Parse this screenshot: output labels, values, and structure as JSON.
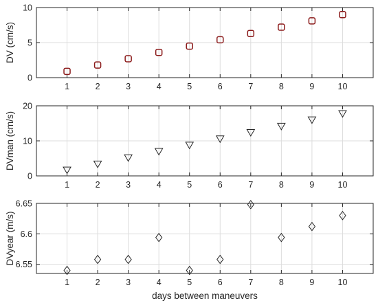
{
  "chart_data": [
    {
      "type": "scatter",
      "ylabel": "DV (cm/s)",
      "xlabel": "",
      "xlim": [
        0,
        11
      ],
      "ylim": [
        0,
        10
      ],
      "xticks": [
        1,
        2,
        3,
        4,
        5,
        6,
        7,
        8,
        9,
        10
      ],
      "yticks": [
        0,
        5,
        10
      ],
      "grid": true,
      "marker": "square",
      "marker_stroke": "#8b1a1a",
      "x": [
        1,
        2,
        3,
        4,
        5,
        6,
        7,
        8,
        9,
        10
      ],
      "y": [
        0.9,
        1.8,
        2.7,
        3.6,
        4.5,
        5.4,
        6.3,
        7.2,
        8.1,
        9.0
      ]
    },
    {
      "type": "scatter",
      "ylabel": "DVman (cm/s)",
      "xlabel": "",
      "xlim": [
        0,
        11
      ],
      "ylim": [
        0,
        20
      ],
      "xticks": [
        1,
        2,
        3,
        4,
        5,
        6,
        7,
        8,
        9,
        10
      ],
      "yticks": [
        0,
        10,
        20
      ],
      "grid": true,
      "marker": "triangle-down",
      "marker_stroke": "#262626",
      "x": [
        1,
        2,
        3,
        4,
        5,
        6,
        7,
        8,
        9,
        10
      ],
      "y": [
        1.6,
        3.3,
        5.1,
        6.9,
        8.7,
        10.5,
        12.3,
        14.1,
        15.9,
        17.7
      ]
    },
    {
      "type": "scatter",
      "ylabel": "DVyear (m/s)",
      "xlabel": "days between maneuvers",
      "xlim": [
        0,
        11
      ],
      "ylim": [
        6.535,
        6.65
      ],
      "xticks": [
        1,
        2,
        3,
        4,
        5,
        6,
        7,
        8,
        9,
        10
      ],
      "yticks": [
        6.55,
        6.6,
        6.65
      ],
      "ytick_labels": [
        "6.55",
        "6.6",
        "6.65"
      ],
      "grid": true,
      "marker": "diamond",
      "marker_stroke": "#262626",
      "x": [
        1,
        2,
        3,
        4,
        5,
        6,
        7,
        8,
        9,
        10
      ],
      "y": [
        6.54,
        6.558,
        6.558,
        6.594,
        6.54,
        6.558,
        6.648,
        6.594,
        6.612,
        6.63
      ]
    }
  ]
}
